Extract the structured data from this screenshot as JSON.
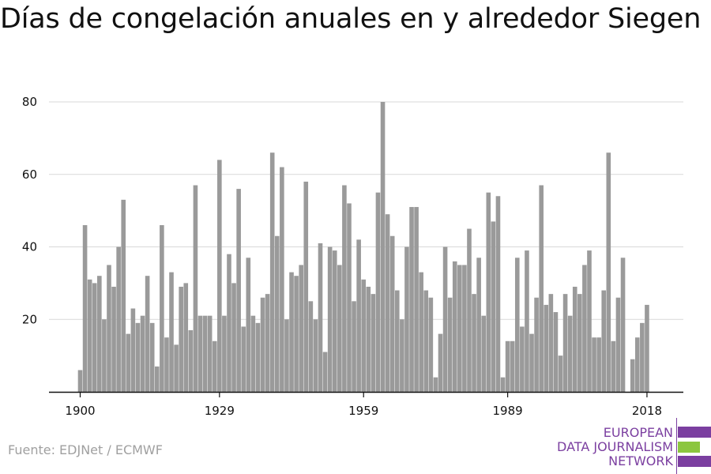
{
  "source": "Fuente: EDJNet / ECMWF",
  "logo": {
    "lines": [
      "EUROPEAN",
      "DATA JOURNALISM",
      "NETWORK"
    ],
    "colors": {
      "purple": "#7b3fa0",
      "green": "#8cc63f"
    }
  },
  "colors": {
    "bar": "#9a9a9a",
    "grid": "#d9d9d9",
    "axis": "#111111",
    "text": "#111111"
  },
  "chart_data": {
    "type": "bar",
    "title": "Días de congelación anuales en y alrededor Siegen",
    "xlabel": "",
    "ylabel": "",
    "ylim": [
      0,
      80
    ],
    "yticks": [
      20,
      40,
      60,
      80
    ],
    "xticks": [
      1900,
      1929,
      1959,
      1989,
      2018
    ],
    "grid": true,
    "x": [
      1900,
      1901,
      1902,
      1903,
      1904,
      1905,
      1906,
      1907,
      1908,
      1909,
      1910,
      1911,
      1912,
      1913,
      1914,
      1915,
      1916,
      1917,
      1918,
      1919,
      1920,
      1921,
      1922,
      1923,
      1924,
      1925,
      1926,
      1927,
      1928,
      1929,
      1930,
      1931,
      1932,
      1933,
      1934,
      1935,
      1936,
      1937,
      1938,
      1939,
      1940,
      1941,
      1942,
      1943,
      1944,
      1945,
      1946,
      1947,
      1948,
      1949,
      1950,
      1951,
      1952,
      1953,
      1954,
      1955,
      1956,
      1957,
      1958,
      1959,
      1960,
      1961,
      1962,
      1963,
      1964,
      1965,
      1966,
      1967,
      1968,
      1969,
      1970,
      1971,
      1972,
      1973,
      1974,
      1975,
      1976,
      1977,
      1978,
      1979,
      1980,
      1981,
      1982,
      1983,
      1984,
      1985,
      1986,
      1987,
      1988,
      1989,
      1990,
      1991,
      1992,
      1993,
      1994,
      1995,
      1996,
      1997,
      1998,
      1999,
      2000,
      2001,
      2002,
      2003,
      2004,
      2005,
      2006,
      2007,
      2008,
      2009,
      2010,
      2011,
      2012,
      2013,
      2014,
      2015,
      2016,
      2017,
      2018
    ],
    "values": [
      6,
      46,
      31,
      30,
      32,
      20,
      35,
      29,
      40,
      53,
      16,
      23,
      19,
      21,
      32,
      19,
      7,
      46,
      15,
      33,
      13,
      29,
      30,
      17,
      57,
      21,
      21,
      21,
      14,
      64,
      21,
      38,
      30,
      56,
      18,
      37,
      21,
      19,
      26,
      27,
      66,
      43,
      62,
      20,
      33,
      32,
      35,
      58,
      25,
      20,
      41,
      11,
      40,
      39,
      35,
      57,
      52,
      25,
      42,
      31,
      29,
      27,
      55,
      80,
      49,
      43,
      28,
      20,
      40,
      51,
      51,
      33,
      28,
      26,
      4,
      16,
      40,
      26,
      36,
      35,
      35,
      45,
      27,
      37,
      21,
      55,
      47,
      54,
      4,
      14,
      14,
      37,
      18,
      39,
      16,
      26,
      57,
      24,
      27,
      22,
      10,
      27,
      21,
      29,
      27,
      35,
      39,
      15,
      15,
      28,
      66,
      14,
      26,
      37,
      0,
      9,
      15,
      19,
      24
    ]
  }
}
